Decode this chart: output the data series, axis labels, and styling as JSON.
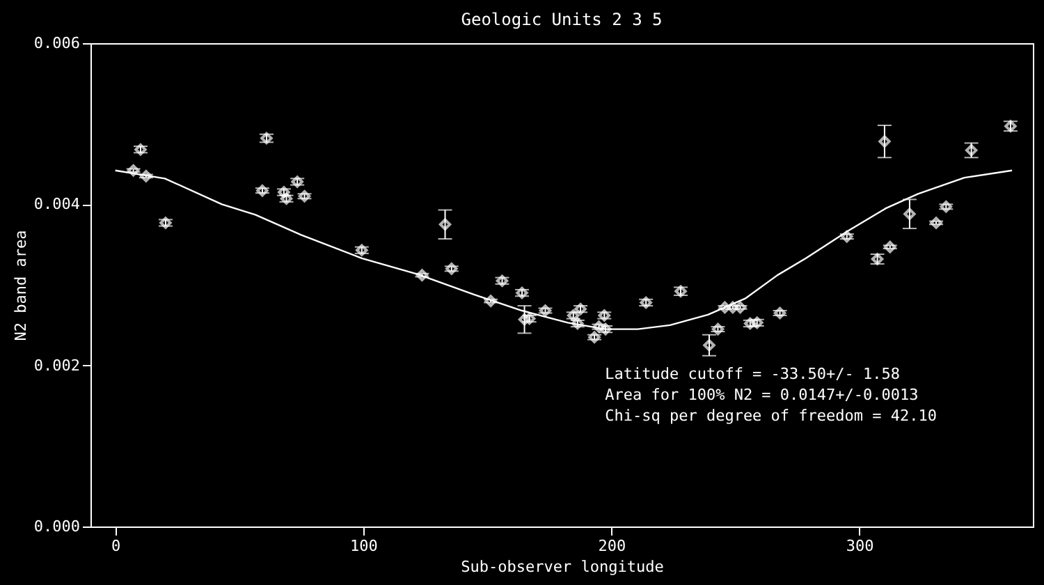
{
  "chart_data": {
    "type": "scatter",
    "title": "Geologic Units 2 3 5",
    "xlabel": "Sub-observer longitude",
    "ylabel": "N2 band area",
    "xlim": [
      -10,
      370
    ],
    "ylim": [
      0,
      0.006
    ],
    "xticks": [
      0,
      100,
      200,
      300
    ],
    "yticks": [
      {
        "value": 0,
        "label": "0.000"
      },
      {
        "value": 0.002,
        "label": "0.002"
      },
      {
        "value": 0.004,
        "label": "0.004"
      },
      {
        "value": 0.006,
        "label": "0.006"
      }
    ],
    "marker": "diamond",
    "series": [
      {
        "color": "#ffffff",
        "x": [
          7.3,
          10.2,
          12.4,
          20.3,
          59.3,
          61,
          68,
          69,
          73.4,
          76.3,
          99.4,
          123.7,
          133,
          135.6,
          151.4,
          156,
          164,
          165,
          167,
          173.4,
          184.7,
          186.4,
          187.6,
          193.2,
          195,
          197.2,
          197.7,
          214,
          228,
          239.5,
          243,
          245.8,
          249,
          252,
          256,
          258.8,
          268,
          295,
          307.3,
          310.2,
          312.4,
          320.3,
          331,
          335,
          345.2,
          361
        ],
        "values": [
          0.00442,
          0.00468,
          0.00435,
          0.00377,
          0.00417,
          0.00482,
          0.00415,
          0.00407,
          0.00428,
          0.0041,
          0.00343,
          0.00312,
          0.00375,
          0.0032,
          0.0028,
          0.00305,
          0.0029,
          0.00257,
          0.00258,
          0.00268,
          0.00262,
          0.00252,
          0.0027,
          0.00235,
          0.00248,
          0.00262,
          0.00245,
          0.00278,
          0.00292,
          0.00225,
          0.00245,
          0.00272,
          0.00272,
          0.00272,
          0.00252,
          0.00253,
          0.00265,
          0.0036,
          0.00332,
          0.00478,
          0.00347,
          0.00388,
          0.00377,
          0.00397,
          0.00467,
          0.00497
        ],
        "errors": [
          2e-05,
          4e-05,
          2e-05,
          4e-05,
          3e-05,
          5e-05,
          4e-05,
          4e-05,
          4e-05,
          3e-05,
          4e-05,
          2e-05,
          0.00018,
          3e-05,
          2e-05,
          4e-05,
          4e-05,
          0.00017,
          4e-05,
          3e-05,
          4e-05,
          4e-05,
          4e-05,
          3e-05,
          3e-05,
          4e-05,
          4e-05,
          4e-05,
          5e-05,
          0.00013,
          3e-05,
          2e-05,
          2e-05,
          2e-05,
          4e-05,
          4e-05,
          3e-05,
          3e-05,
          6e-05,
          0.0002,
          2e-05,
          0.00018,
          2e-05,
          3e-05,
          9e-05,
          6e-05
        ]
      },
      {
        "type": "line",
        "color": "#ffffff",
        "marker": "none",
        "line_style": "solid",
        "x": [
          0,
          20,
          43,
          56.5,
          75,
          99.4,
          122,
          144.6,
          164,
          182.5,
          197.7,
          210.7,
          223.7,
          239,
          254,
          267,
          278.5,
          295.5,
          310.7,
          323.7,
          342.4,
          361.6
        ],
        "values": [
          0.00442,
          0.00432,
          0.004,
          0.00387,
          0.00362,
          0.00333,
          0.00313,
          0.00288,
          0.00268,
          0.00253,
          0.00245,
          0.00245,
          0.0025,
          0.00263,
          0.00283,
          0.00312,
          0.00333,
          0.00367,
          0.00395,
          0.00413,
          0.00433,
          0.00442
        ]
      }
    ],
    "annotations": [
      "Latitude cutoff = -33.50+/-  1.58",
      "Area for 100% N2 = 0.0147+/-0.0013",
      "Chi-sq per degree of freedom = 42.10"
    ]
  }
}
